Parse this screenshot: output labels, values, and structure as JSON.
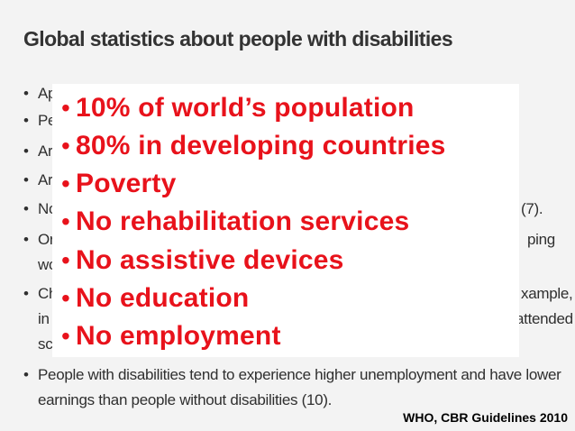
{
  "document": {
    "title": "Global statistics about people with disabilities",
    "background_lines": [
      {
        "bullet": "•",
        "text": "Ap"
      },
      {
        "bullet": "•",
        "text": "Pe"
      },
      {
        "bullet": "•",
        "text": "Ar"
      },
      {
        "bullet": "•",
        "text": "Ar"
      },
      {
        "bullet": "•",
        "text": "No",
        "tail": "(7)."
      },
      {
        "bullet": "•",
        "text": "Or",
        "tail": "ping"
      },
      {
        "bullet": "",
        "text": "wo"
      },
      {
        "bullet": "•",
        "text": "Ch",
        "tail": "xample,"
      },
      {
        "bullet": "",
        "text": "in",
        "tail": "attended"
      },
      {
        "bullet": "",
        "text": "sc"
      }
    ],
    "last_bullet": {
      "bullet": "•",
      "line1": "People with disabilities tend to experience higher unemployment and have lower",
      "line2": "earnings than people without disabilities (10)."
    }
  },
  "overlay": {
    "bullet": "•",
    "items": [
      "10% of world’s population",
      "80% in developing countries",
      "Poverty",
      "No rehabilitation services",
      "No assistive devices",
      "No education",
      "No employment"
    ],
    "text_color": "#e8121b"
  },
  "credit": "WHO, CBR Guidelines 2010"
}
